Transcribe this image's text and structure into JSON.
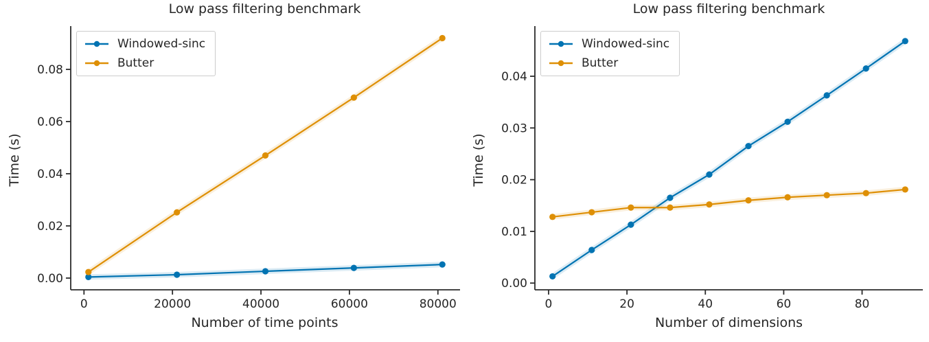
{
  "style": {
    "background": "#ffffff",
    "text_color": "#262626",
    "axis_color": "#2b2b2b",
    "legend_border": "#cccccc",
    "blue": "#0173b2",
    "orange": "#de8f05",
    "band_opacity": 0.14
  },
  "chart_data": [
    {
      "type": "line",
      "title": "Low pass filtering benchmark",
      "xlabel": "Number of time points",
      "ylabel": "Time (s)",
      "x": [
        1000,
        21000,
        41000,
        61000,
        81000
      ],
      "series": [
        {
          "name": "Windowed-sinc",
          "color": "#0173b2",
          "values": [
            0.0004,
            0.0013,
            0.0026,
            0.0039,
            0.0052
          ]
        },
        {
          "name": "Butter",
          "color": "#de8f05",
          "values": [
            0.0023,
            0.0252,
            0.047,
            0.0692,
            0.092
          ]
        }
      ],
      "xticks": {
        "values": [
          0,
          20000,
          40000,
          60000,
          80000
        ],
        "labels": [
          "0",
          "20000",
          "40000",
          "60000",
          "80000"
        ]
      },
      "yticks": {
        "values": [
          0,
          0.02,
          0.04,
          0.06,
          0.08
        ],
        "labels": [
          "0.00",
          "0.02",
          "0.04",
          "0.06",
          "0.08"
        ]
      },
      "xlim": [
        -3000,
        85000
      ],
      "ylim": [
        -0.0045,
        0.0966
      ],
      "grid": false,
      "legend_position": "upper-left"
    },
    {
      "type": "line",
      "title": "Low pass filtering benchmark",
      "xlabel": "Number of dimensions",
      "ylabel": "Time (s)",
      "x": [
        1,
        11,
        21,
        31,
        41,
        51,
        61,
        71,
        81,
        91
      ],
      "series": [
        {
          "name": "Windowed-sinc",
          "color": "#0173b2",
          "values": [
            0.0013,
            0.0064,
            0.0113,
            0.0165,
            0.021,
            0.0265,
            0.0312,
            0.0363,
            0.0415,
            0.0468
          ]
        },
        {
          "name": "Butter",
          "color": "#de8f05",
          "values": [
            0.0128,
            0.0137,
            0.0146,
            0.0146,
            0.0152,
            0.016,
            0.0166,
            0.017,
            0.0174,
            0.0181
          ]
        }
      ],
      "xticks": {
        "values": [
          0,
          20,
          40,
          60,
          80
        ],
        "labels": [
          "0",
          "20",
          "40",
          "60",
          "80"
        ]
      },
      "yticks": {
        "values": [
          0,
          0.01,
          0.02,
          0.03,
          0.04
        ],
        "labels": [
          "0.00",
          "0.01",
          "0.02",
          "0.03",
          "0.04"
        ]
      },
      "xlim": [
        -3.5,
        95.5
      ],
      "ylim": [
        -0.0013,
        0.0497
      ],
      "grid": false,
      "legend_position": "upper-left"
    }
  ]
}
